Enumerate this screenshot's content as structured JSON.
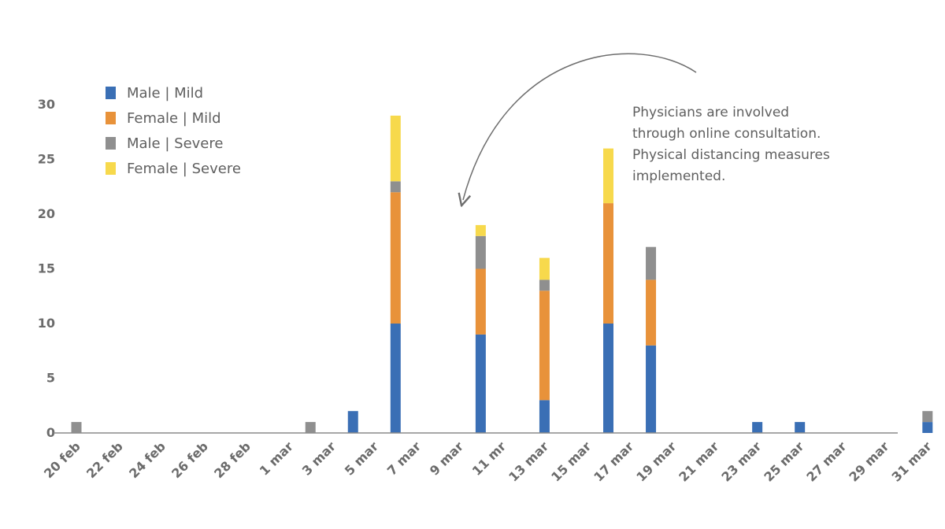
{
  "chart_data": {
    "type": "bar",
    "stacked": true,
    "x_tick_labels": [
      "20 feb",
      "22 feb",
      "24 feb",
      "26 feb",
      "28 feb",
      "1 mar",
      "3 mar",
      "5 mar",
      "7 mar",
      "9 mar",
      "11 mr",
      "13 mar",
      "15 mar",
      "17 mar",
      "19 mar",
      "21 mar",
      "23 mar",
      "25 mar",
      "27 mar",
      "29 mar",
      "31 mar"
    ],
    "y_ticks": [
      0,
      5,
      10,
      15,
      20,
      25,
      30
    ],
    "ylim": [
      0,
      30
    ],
    "grid": false,
    "legend_position": "top-left",
    "categories": [
      "20 feb",
      "2 mar",
      "4 mar",
      "6 mar",
      "10 mar",
      "13 mar",
      "16 mar",
      "18 mar",
      "23 mar",
      "25 mar",
      "31 mar"
    ],
    "series": [
      {
        "name": "Male | Mild",
        "color": "#3a6fb5",
        "values": [
          0,
          0,
          2,
          10,
          9,
          3,
          10,
          8,
          1,
          1,
          1
        ]
      },
      {
        "name": "Female | Mild",
        "color": "#e8923a",
        "values": [
          0,
          0,
          0,
          12,
          6,
          10,
          11,
          6,
          0,
          0,
          0
        ]
      },
      {
        "name": "Male | Severe",
        "color": "#8f8f8f",
        "values": [
          1,
          1,
          0,
          1,
          3,
          1,
          0,
          3,
          0,
          0,
          1
        ]
      },
      {
        "name": "Female | Severe",
        "color": "#f7d94c",
        "values": [
          0,
          0,
          0,
          6,
          1,
          2,
          5,
          0,
          0,
          0,
          0
        ]
      }
    ],
    "annotation": {
      "lines": [
        "Physicians are involved",
        "through online consultation.",
        "Physical distancing measures",
        "implemented."
      ],
      "points_to": "10 mar"
    }
  }
}
